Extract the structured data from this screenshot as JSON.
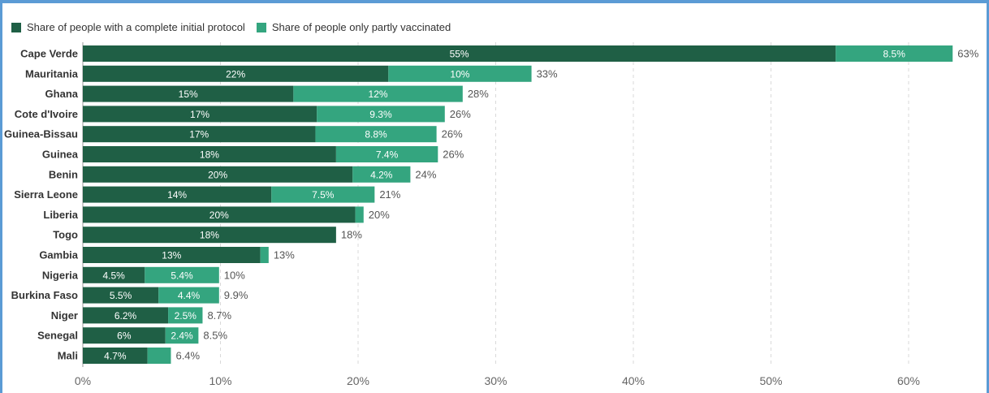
{
  "chart_data": {
    "type": "bar",
    "orientation": "horizontal",
    "stacked": true,
    "title": "",
    "xlabel": "",
    "ylabel": "",
    "xlim": [
      0,
      65
    ],
    "x_ticks": [
      0,
      10,
      20,
      30,
      40,
      50,
      60
    ],
    "x_tick_labels": [
      "0%",
      "10%",
      "20%",
      "30%",
      "40%",
      "50%",
      "60%"
    ],
    "grid": "vertical-dashed",
    "legend_position": "top-left",
    "categories": [
      "Cape Verde",
      "Mauritania",
      "Ghana",
      "Cote d'Ivoire",
      "Guinea-Bissau",
      "Guinea",
      "Benin",
      "Sierra Leone",
      "Liberia",
      "Togo",
      "Gambia",
      "Nigeria",
      "Burkina Faso",
      "Niger",
      "Senegal",
      "Mali"
    ],
    "series": [
      {
        "name": "Share of people with a complete initial protocol",
        "color": "#1f5f45",
        "values": [
          54.7,
          22.2,
          15.3,
          17.0,
          16.9,
          18.4,
          19.6,
          13.7,
          19.8,
          18.4,
          12.9,
          4.5,
          5.5,
          6.2,
          6.0,
          4.7
        ],
        "labels": [
          "55%",
          "22%",
          "15%",
          "17%",
          "17%",
          "18%",
          "20%",
          "14%",
          "20%",
          "18%",
          "13%",
          "4.5%",
          "5.5%",
          "6.2%",
          "6%",
          "4.7%"
        ]
      },
      {
        "name": "Share of people only partly vaccinated",
        "color": "#34a57f",
        "values": [
          8.5,
          10.4,
          12.3,
          9.3,
          8.8,
          7.4,
          4.2,
          7.5,
          0.6,
          0,
          0.6,
          5.4,
          4.4,
          2.5,
          2.4,
          1.7
        ],
        "labels": [
          "8.5%",
          "10%",
          "12%",
          "9.3%",
          "8.8%",
          "7.4%",
          "4.2%",
          "7.5%",
          "",
          "",
          "",
          "5.4%",
          "4.4%",
          "2.5%",
          "2.4%",
          ""
        ]
      }
    ],
    "totals": [
      "63%",
      "33%",
      "28%",
      "26%",
      "26%",
      "26%",
      "24%",
      "21%",
      "20%",
      "18%",
      "13%",
      "10%",
      "9.9%",
      "8.7%",
      "8.5%",
      "6.4%"
    ]
  }
}
